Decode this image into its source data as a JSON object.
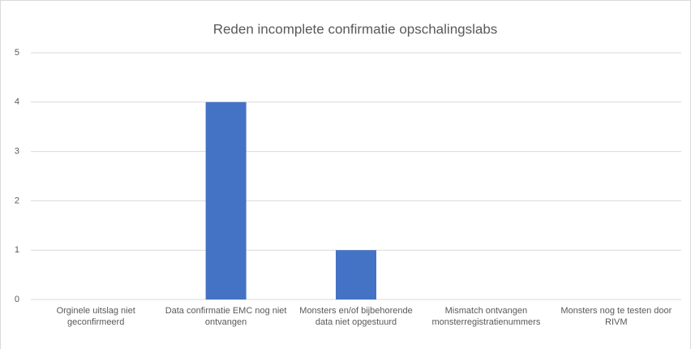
{
  "chart_data": {
    "type": "bar",
    "title": "Reden incomplete confirmatie opschalingslabs",
    "categories": [
      "Orginele uitslag  niet geconfirmeerd",
      "Data confirmatie EMC nog niet ontvangen",
      "Monsters en/of bijbehorende data niet opgestuurd",
      "Mismatch ontvangen monsterregistratienummers",
      "Monsters nog te testen door RIVM"
    ],
    "values": [
      0,
      4,
      1,
      0,
      0
    ],
    "color": "#4472c4",
    "ylim": [
      0,
      5
    ],
    "yticks": [
      0,
      1,
      2,
      3,
      4,
      5
    ],
    "grid": true
  }
}
